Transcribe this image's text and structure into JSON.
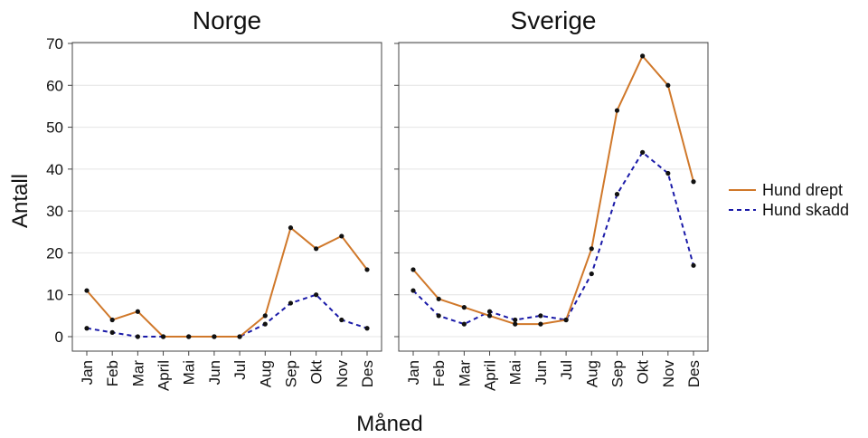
{
  "chart_data": {
    "type": "line",
    "ylabel": "Antall",
    "xlabel": "Måned",
    "ylim": [
      0,
      70
    ],
    "yticks": [
      0,
      10,
      20,
      30,
      40,
      50,
      60,
      70
    ],
    "categories": [
      "Jan",
      "Feb",
      "Mar",
      "April",
      "Mai",
      "Jun",
      "Jul",
      "Aug",
      "Sep",
      "Okt",
      "Nov",
      "Des"
    ],
    "colors": {
      "drept": "#d0782a",
      "skadd": "#1a1aa8",
      "marker": "#111111"
    },
    "legend": {
      "position": "right",
      "entries": [
        {
          "key": "drept",
          "label": "Hund drept",
          "style": "solid"
        },
        {
          "key": "skadd",
          "label": "Hund skadd",
          "style": "dashed"
        }
      ]
    },
    "panels": [
      {
        "id": "norge",
        "title": "Norge",
        "series": [
          {
            "key": "drept",
            "name": "Hund drept",
            "values": [
              11,
              4,
              6,
              0,
              0,
              0,
              0,
              5,
              26,
              21,
              24,
              16
            ]
          },
          {
            "key": "skadd",
            "name": "Hund skadd",
            "values": [
              2,
              1,
              0,
              0,
              0,
              0,
              0,
              3,
              8,
              10,
              4,
              2
            ]
          }
        ]
      },
      {
        "id": "sverige",
        "title": "Sverige",
        "series": [
          {
            "key": "drept",
            "name": "Hund drept",
            "values": [
              16,
              9,
              7,
              5,
              3,
              3,
              4,
              21,
              54,
              67,
              60,
              37
            ]
          },
          {
            "key": "skadd",
            "name": "Hund skadd",
            "values": [
              11,
              5,
              3,
              6,
              4,
              5,
              4,
              15,
              34,
              44,
              39,
              17
            ]
          }
        ]
      }
    ]
  }
}
